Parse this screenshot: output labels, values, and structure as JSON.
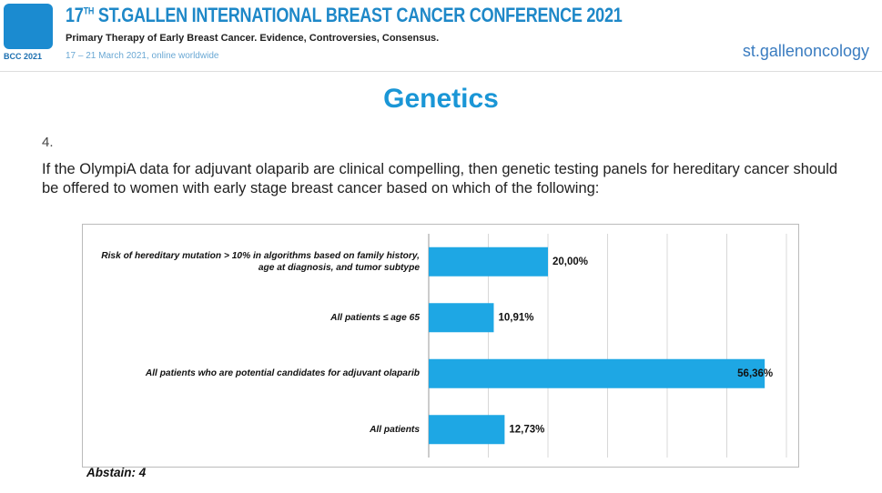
{
  "header": {
    "logo_text": "BCC 2021",
    "title_number": "17",
    "title_suffix": "TH",
    "title_rest": "ST.GALLEN INTERNATIONAL BREAST CANCER CONFERENCE 2021",
    "subtitle": "Primary Therapy of Early Breast Cancer. Evidence, Controversies, Consensus.",
    "date": "17 – 21 March 2021, online worldwide",
    "brand": "st.gallenoncology"
  },
  "slide": {
    "heading": "Genetics",
    "number": "4.",
    "question": "If the OlympiA data for adjuvant olaparib are clinical compelling, then genetic testing panels for hereditary cancer should be offered to women with early stage breast cancer based on which of the following:",
    "abstain": "Abstain: 4"
  },
  "chart_data": {
    "type": "hbar",
    "categories": [
      "Risk of hereditary mutation > 10% in algorithms based on family history, age at diagnosis, and tumor subtype",
      "All patients ≤ age 65",
      "All patients who are potential candidates for adjuvant olaparib",
      "All patients"
    ],
    "values": [
      20.0,
      10.91,
      56.36,
      12.73
    ],
    "value_labels": [
      "20,00%",
      "10,91%",
      "56,36%",
      "12,73%"
    ],
    "color": "#1ea7e4",
    "xlim": [
      0,
      60
    ],
    "xticks": [
      0,
      10,
      20,
      30,
      40,
      50,
      60
    ],
    "grid": true
  }
}
